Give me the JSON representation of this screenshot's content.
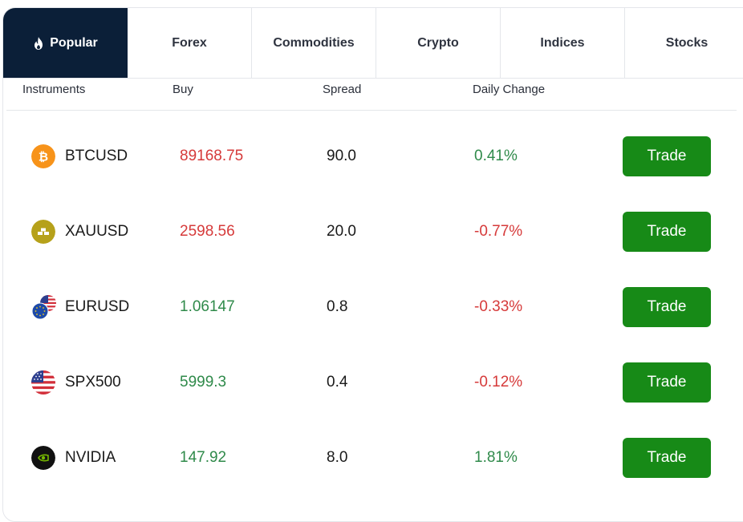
{
  "tabs": [
    {
      "label": "Popular",
      "active": true
    },
    {
      "label": "Forex"
    },
    {
      "label": "Commodities"
    },
    {
      "label": "Crypto"
    },
    {
      "label": "Indices"
    },
    {
      "label": "Stocks"
    }
  ],
  "columns": {
    "instruments": "Instruments",
    "buy": "Buy",
    "spread": "Spread",
    "daily_change": "Daily Change"
  },
  "rows": [
    {
      "name": "BTCUSD",
      "buy": "89168.75",
      "buy_direction": "down",
      "spread": "90.0",
      "change": "0.41%",
      "change_direction": "up",
      "icon": "bitcoin-icon",
      "action": "Trade"
    },
    {
      "name": "XAUUSD",
      "buy": "2598.56",
      "buy_direction": "down",
      "spread": "20.0",
      "change": "-0.77%",
      "change_direction": "down",
      "icon": "gold-icon",
      "action": "Trade"
    },
    {
      "name": "EURUSD",
      "buy": "1.06147",
      "buy_direction": "up",
      "spread": "0.8",
      "change": "-0.33%",
      "change_direction": "down",
      "icon": "eur-usd-flags-icon",
      "action": "Trade"
    },
    {
      "name": "SPX500",
      "buy": "5999.3",
      "buy_direction": "up",
      "spread": "0.4",
      "change": "-0.12%",
      "change_direction": "down",
      "icon": "us-flag-icon",
      "action": "Trade"
    },
    {
      "name": "NVIDIA",
      "buy": "147.92",
      "buy_direction": "up",
      "spread": "8.0",
      "change": "1.81%",
      "change_direction": "up",
      "icon": "nvidia-icon",
      "action": "Trade"
    }
  ],
  "colors": {
    "active_tab_bg": "#0b1f38",
    "trade_button": "#178a17",
    "up": "#2f8a4a",
    "down": "#d63a3a"
  }
}
